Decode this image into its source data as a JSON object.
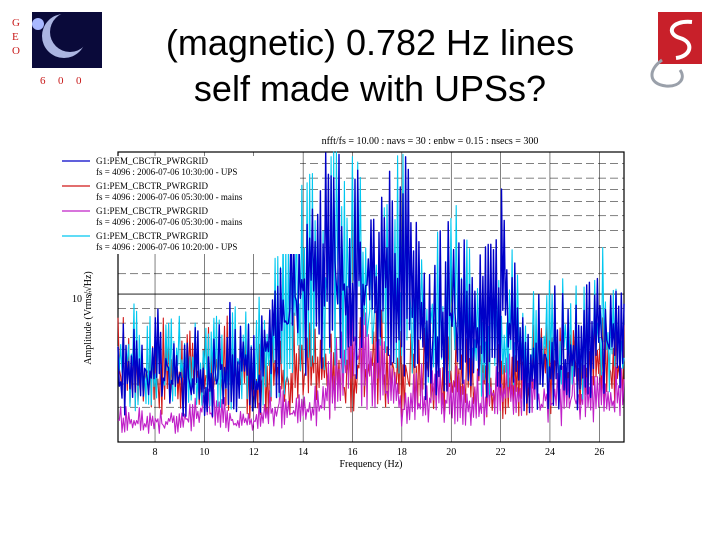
{
  "slide": {
    "title_line1": "(magnetic) 0.782 Hz lines",
    "title_line2": "self made with UPSs?"
  },
  "logos": {
    "left_letters": [
      "G",
      "E",
      "O",
      "6",
      "0",
      "0"
    ],
    "right_icon": "red-s-emblem-icon"
  },
  "chart_data": {
    "type": "line",
    "title": "nfft/fs = 10.00 : navs = 30 : enbw = 0.15 : nsecs = 300",
    "xlabel": "Frequency (Hz)",
    "ylabel": "Amplitude (Vrms/√Hz)",
    "xlim": [
      6.5,
      27
    ],
    "x_ticks": [
      "8",
      "10",
      "12",
      "14",
      "16",
      "18",
      "20",
      "22",
      "24",
      "26"
    ],
    "y_tick_label": "10",
    "y_tick_exponent": "-5",
    "grid": true,
    "legend_position": "top-left",
    "colors": {
      "blue": "#0000c8",
      "red": "#d01818",
      "magenta": "#c020c8",
      "cyan": "#00c8f0"
    },
    "legend": [
      {
        "line1": "G1:PEM_CBCTR_PWRGRID",
        "line2": "fs = 4096 : 2006-07-06 10:30:00 - UPS",
        "color": "#0000c8"
      },
      {
        "line1": "G1:PEM_CBCTR_PWRGRID",
        "line2": "fs = 4096 : 2006-07-06 05:30:00 - mains",
        "color": "#d01818"
      },
      {
        "line1": "G1:PEM_CBCTR_PWRGRID",
        "line2": "fs = 4096 : 2006-07-06 05:30:00 - mains",
        "color": "#c020c8"
      },
      {
        "line1": "G1:PEM_CBCTR_PWRGRID",
        "line2": "fs = 4096 : 2006-07-06 10:20:00 - UPS",
        "color": "#00c8f0"
      }
    ],
    "series": [
      {
        "color": "#d01818",
        "x": [
          6.5,
          8,
          9,
          10,
          11,
          12,
          13,
          14,
          15,
          16,
          17,
          18,
          19,
          20,
          21,
          22,
          23,
          24,
          25,
          26,
          27
        ],
        "y": [
          3.8,
          3.6,
          3.5,
          3.3,
          3.7,
          3.2,
          3.5,
          3.9,
          3.2,
          3.5,
          4.3,
          3.4,
          3.6,
          3.5,
          3.3,
          3.2,
          3.4,
          3.8,
          4.5,
          4.2,
          4.0
        ]
      },
      {
        "color": "#c020c8",
        "x": [
          6.5,
          8,
          9,
          10,
          11,
          12,
          13,
          14,
          15,
          16,
          17,
          18,
          19,
          20,
          21,
          22,
          23,
          24,
          25,
          26,
          27
        ],
        "y": [
          1.2,
          1.0,
          1.1,
          1.8,
          1.2,
          1.0,
          2.0,
          1.4,
          2.5,
          4.8,
          3.5,
          1.8,
          2.5,
          2.3,
          2.0,
          2.6,
          3.0,
          2.0,
          2.4,
          2.1,
          2.6
        ]
      },
      {
        "color": "#00c8f0",
        "x": [
          6.5,
          8,
          9,
          10,
          11,
          12,
          13,
          14,
          15,
          16,
          17,
          18,
          19,
          20,
          21,
          22,
          23,
          24,
          25,
          26,
          27
        ],
        "y": [
          4.2,
          3.8,
          4.0,
          3.7,
          4.4,
          3.8,
          6.0,
          7.5,
          9.5,
          8.5,
          6.8,
          9.2,
          5.8,
          7.2,
          5.3,
          6.8,
          4.4,
          5.0,
          4.5,
          5.8,
          4.4
        ]
      },
      {
        "color": "#0000c8",
        "x": [
          6.5,
          8,
          9,
          10,
          11,
          12,
          13,
          14,
          15,
          16,
          17,
          18,
          19,
          20,
          21,
          22,
          23,
          24,
          25,
          26,
          27
        ],
        "y": [
          3.5,
          4.0,
          3.6,
          3.2,
          4.1,
          3.4,
          5.9,
          8.0,
          9.2,
          9.0,
          7.0,
          9.4,
          5.2,
          7.3,
          5.0,
          7.5,
          3.8,
          4.6,
          4.0,
          5.6,
          4.2
        ]
      }
    ]
  }
}
